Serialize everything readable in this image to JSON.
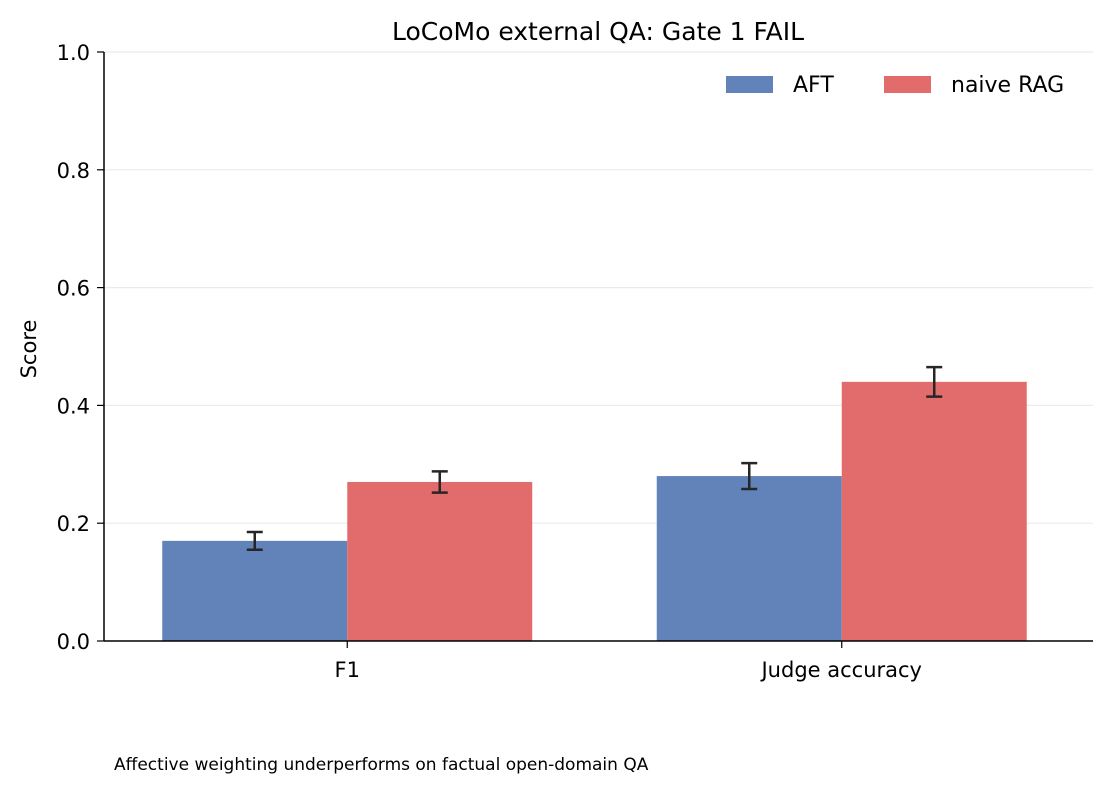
{
  "chart_data": {
    "type": "bar",
    "title": "LoCoMo external QA: Gate 1 FAIL",
    "ylabel": "Score",
    "xlabel": "",
    "ylim": [
      0,
      1.0
    ],
    "yticks": [
      "0.0",
      "0.2",
      "0.4",
      "0.6",
      "0.8",
      "1.0"
    ],
    "categories": [
      "F1",
      "Judge accuracy"
    ],
    "grid": "horizontal",
    "legend_position": "top-right",
    "series": [
      {
        "name": "AFT",
        "color": "#6283b9",
        "values": [
          0.17,
          0.28
        ],
        "err": [
          0.015,
          0.022
        ]
      },
      {
        "name": "naive RAG",
        "color": "#e26b6b",
        "values": [
          0.27,
          0.44
        ],
        "err": [
          0.018,
          0.025
        ]
      }
    ]
  },
  "caption": "Affective weighting underperforms on factual open-domain QA"
}
